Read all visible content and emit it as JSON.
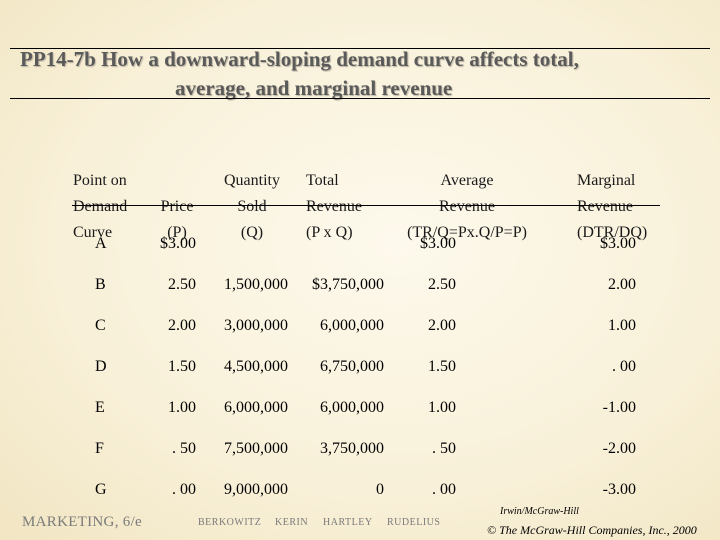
{
  "title": {
    "line1": "PP14-7b  How a downward-sloping demand curve affects total,",
    "line2": "average, and marginal revenue"
  },
  "headers": {
    "point": [
      "Point on",
      "Demand",
      "Curve"
    ],
    "price": [
      "Price",
      "(P)"
    ],
    "quantity": [
      "Quantity",
      "Sold",
      "(Q)"
    ],
    "total": [
      "Total",
      "Revenue",
      "(P x Q)"
    ],
    "average": [
      "Average",
      "Revenue",
      "(TR/Q=Px.Q/P=P)"
    ],
    "marginal": [
      "Marginal",
      "Revenue",
      "(DTR/DQ)"
    ]
  },
  "rows": [
    {
      "point": "A",
      "price": "$3.00",
      "quantity": "",
      "total": "",
      "average": "$3.00",
      "marginal": "$3.00"
    },
    {
      "point": "B",
      "price": "2.50",
      "quantity": "1,500,000",
      "total": "$3,750,000",
      "average": "2.50",
      "marginal": "2.00"
    },
    {
      "point": "C",
      "price": "2.00",
      "quantity": "3,000,000",
      "total": "6,000,000",
      "average": "2.00",
      "marginal": "1.00"
    },
    {
      "point": "D",
      "price": "1.50",
      "quantity": "4,500,000",
      "total": "6,750,000",
      "average": "1.50",
      "marginal": ". 00"
    },
    {
      "point": "E",
      "price": "1.00",
      "quantity": "6,000,000",
      "total": "6,000,000",
      "average": "1.00",
      "marginal": "-1.00"
    },
    {
      "point": "F",
      "price": ". 50",
      "quantity": "7,500,000",
      "total": "3,750,000",
      "average": ". 50",
      "marginal": "-2.00"
    },
    {
      "point": "G",
      "price": ". 00",
      "quantity": "9,000,000",
      "total": "0",
      "average": ". 00",
      "marginal": "-3.00"
    }
  ],
  "footer": {
    "course": "MARKETING, 6/e",
    "authors": [
      "BERKOWITZ",
      "KERIN",
      "HARTLEY",
      "RUDELIUS"
    ],
    "publisher": "Irwin/McGraw-Hill",
    "copyright": "© The McGraw-Hill Companies, Inc., 2000"
  }
}
